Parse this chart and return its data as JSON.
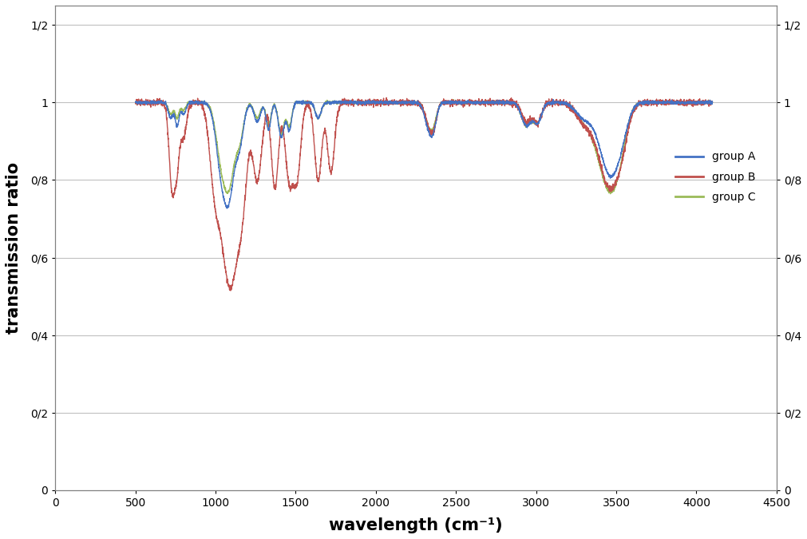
{
  "title": "",
  "xlabel": "wavelength (cm⁻¹)",
  "ylabel": "transmission ratio",
  "xlim": [
    0,
    4500
  ],
  "ylim": [
    0,
    1.25
  ],
  "xticks": [
    0,
    500,
    1000,
    1500,
    2000,
    2500,
    3000,
    3500,
    4000,
    4500
  ],
  "yticks": [
    0,
    0.2,
    0.4,
    0.6,
    0.8,
    1.0,
    1.2
  ],
  "ytick_labels": [
    "0",
    "0/2",
    "0/4",
    "0/6",
    "0/8",
    "1",
    "1/2"
  ],
  "colors": {
    "groupA": "#4472C4",
    "groupB": "#C0504D",
    "groupC": "#9BBB59"
  },
  "legend": [
    "group A",
    "group B",
    "group C"
  ],
  "background": "#FFFFFF",
  "grid_color": "#C0C0C0",
  "line_width": 1.0
}
